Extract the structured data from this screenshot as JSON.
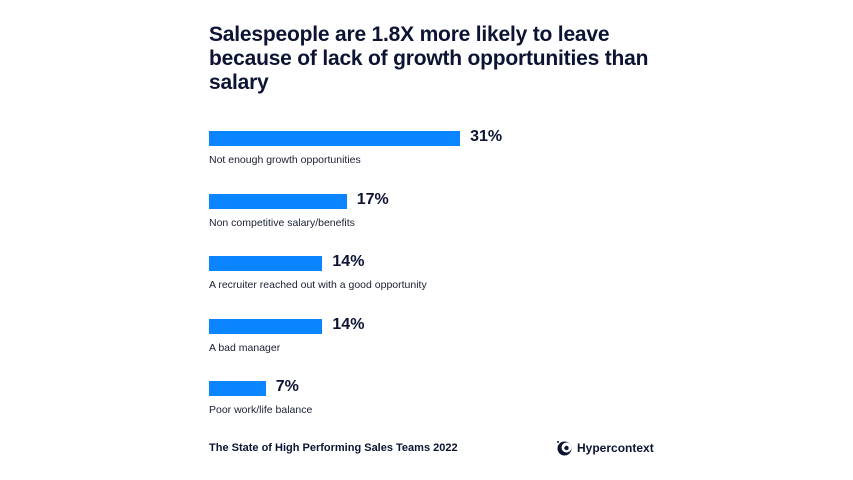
{
  "chart_data": {
    "type": "bar",
    "orientation": "horizontal",
    "title": "Salespeople are 1.8X more likely to leave because of lack of growth opportunities than salary",
    "categories": [
      "Not enough growth opportunities",
      "Non competitive salary/benefits",
      "A recruiter reached out with a good opportunity",
      "A bad manager",
      "Poor work/life balance"
    ],
    "values": [
      31,
      17,
      14,
      14,
      7
    ],
    "value_labels": [
      "31%",
      "17%",
      "14%",
      "14%",
      "7%"
    ],
    "unit": "%",
    "grid": false,
    "bar_color": "#0a84ff"
  },
  "footer": {
    "source": "The State of High Performing Sales Teams 2022",
    "brand": "Hypercontext",
    "brand_icon": "hypercontext-logo-icon"
  }
}
